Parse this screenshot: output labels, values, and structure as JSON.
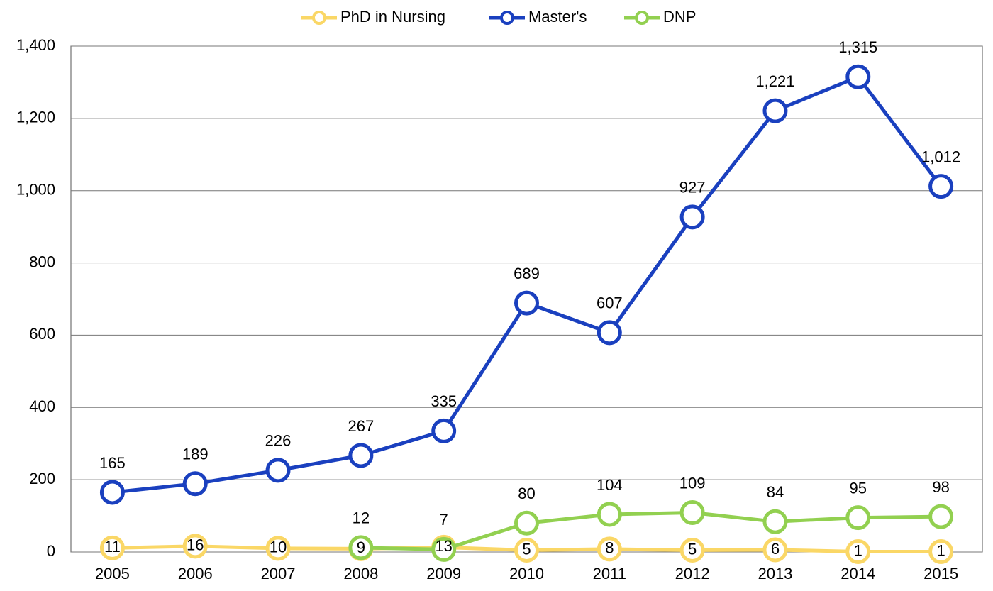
{
  "chart_data": {
    "type": "line",
    "categories": [
      "2005",
      "2006",
      "2007",
      "2008",
      "2009",
      "2010",
      "2011",
      "2012",
      "2013",
      "2014",
      "2015"
    ],
    "series": [
      {
        "name": "PhD in Nursing",
        "color": "#fad766",
        "values": [
          11,
          16,
          10,
          9,
          13,
          5,
          8,
          5,
          6,
          1,
          1
        ]
      },
      {
        "name": "Master's",
        "color": "#1a40bf",
        "values": [
          165,
          189,
          226,
          267,
          335,
          689,
          607,
          927,
          1221,
          1315,
          1012
        ],
        "value_labels": [
          "165",
          "189",
          "226",
          "267",
          "335",
          "689",
          "607",
          "927",
          "1,221",
          "1,315",
          "1,012"
        ]
      },
      {
        "name": "DNP",
        "color": "#92d050",
        "values": [
          null,
          null,
          null,
          12,
          7,
          80,
          104,
          109,
          84,
          95,
          98
        ]
      }
    ],
    "ylim": [
      0,
      1400
    ],
    "yticks": [
      0,
      200,
      400,
      600,
      800,
      {
        "value": 1000,
        "label": "1,000"
      },
      {
        "value": 1200,
        "label": "1,200"
      },
      {
        "value": 1400,
        "label": "1,400"
      }
    ],
    "grid": true,
    "legend": "top"
  }
}
